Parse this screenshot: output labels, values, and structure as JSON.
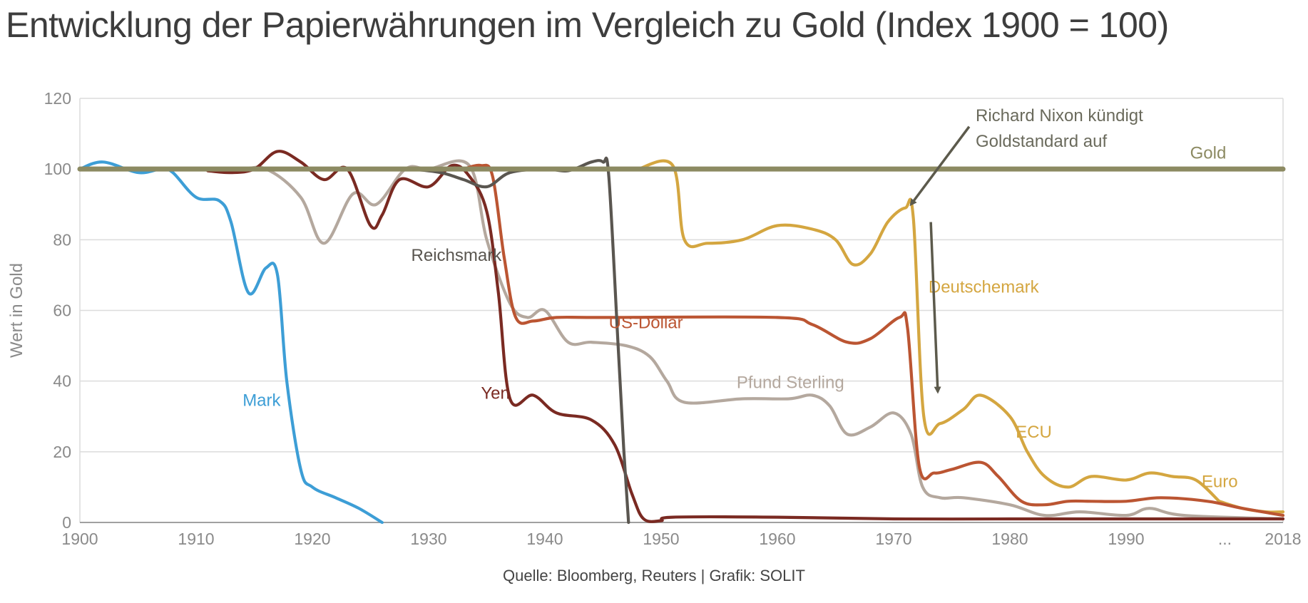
{
  "title": "Entwicklung der Papierwährungen im Vergleich zu Gold (Index 1900 = 100)",
  "source": "Quelle: Bloomberg, Reuters | Grafik: SOLIT",
  "chart_data": {
    "type": "line",
    "title": "Entwicklung der Papierwährungen im Vergleich zu Gold (Index 1900 = 100)",
    "xlabel": "",
    "ylabel": "Wert in Gold",
    "ylim": [
      0,
      120
    ],
    "xlim": [
      1900,
      2003.5
    ],
    "grid": true,
    "x_ticks": [
      {
        "value": 1900,
        "label": "1900"
      },
      {
        "value": 1910,
        "label": "1910"
      },
      {
        "value": 1920,
        "label": "1920"
      },
      {
        "value": 1930,
        "label": "1930"
      },
      {
        "value": 1940,
        "label": "1940"
      },
      {
        "value": 1950,
        "label": "1950"
      },
      {
        "value": 1960,
        "label": "1960"
      },
      {
        "value": 1970,
        "label": "1970"
      },
      {
        "value": 1980,
        "label": "1980"
      },
      {
        "value": 1990,
        "label": "1990"
      },
      {
        "value": 1998.5,
        "label": "..."
      },
      {
        "value": 2003.5,
        "label": "2018"
      }
    ],
    "y_ticks": [
      {
        "value": 0,
        "label": "0"
      },
      {
        "value": 20,
        "label": "20"
      },
      {
        "value": 40,
        "label": "40"
      },
      {
        "value": 60,
        "label": "60"
      },
      {
        "value": 80,
        "label": "80"
      },
      {
        "value": 100,
        "label": "100"
      },
      {
        "value": 120,
        "label": "120"
      }
    ],
    "series": [
      {
        "name": "Gold",
        "label": "Gold",
        "color": "#8c8a62",
        "label_at": [
          1995.5,
          103
        ],
        "points": [
          [
            1900,
            100
          ],
          [
            2003.5,
            100
          ]
        ]
      },
      {
        "name": "Reichsmark",
        "label": "Reichsmark",
        "color": "#5a5650",
        "label_at": [
          1928.5,
          74
        ],
        "points": [
          [
            1924,
            100
          ],
          [
            1928,
            100
          ],
          [
            1931,
            99
          ],
          [
            1933,
            97
          ],
          [
            1935,
            95
          ],
          [
            1937,
            99
          ],
          [
            1940,
            100
          ],
          [
            1942,
            99.5
          ],
          [
            1944,
            102
          ],
          [
            1945,
            102
          ],
          [
            1945.5,
            98
          ],
          [
            1946.3,
            50
          ],
          [
            1946.8,
            20
          ],
          [
            1947.2,
            0
          ]
        ]
      },
      {
        "name": "Yen",
        "label": "Yen",
        "color": "#7a2a22",
        "label_at": [
          1934.5,
          35
        ],
        "points": [
          [
            1911,
            99.5
          ],
          [
            1913,
            99
          ],
          [
            1915,
            100
          ],
          [
            1917,
            105
          ],
          [
            1919,
            102
          ],
          [
            1921,
            97
          ],
          [
            1923,
            100
          ],
          [
            1925,
            84
          ],
          [
            1926,
            87
          ],
          [
            1927.5,
            97
          ],
          [
            1930,
            95
          ],
          [
            1932,
            101
          ],
          [
            1933.5,
            98
          ],
          [
            1935,
            88
          ],
          [
            1936,
            65
          ],
          [
            1937,
            35
          ],
          [
            1939,
            36
          ],
          [
            1941,
            31
          ],
          [
            1944,
            29
          ],
          [
            1946,
            22
          ],
          [
            1947.5,
            8
          ],
          [
            1948.5,
            1
          ],
          [
            1950,
            0.5
          ],
          [
            1951,
            1.5
          ],
          [
            1960,
            1.5
          ],
          [
            1970,
            1
          ],
          [
            1980,
            1
          ],
          [
            1990,
            1
          ],
          [
            2003.5,
            1
          ]
        ]
      },
      {
        "name": "US-Dollar",
        "label": "US-Dollar",
        "color": "#bb5532",
        "label_at": [
          1945.5,
          55
        ],
        "points": [
          [
            1933,
            100
          ],
          [
            1934.5,
            101
          ],
          [
            1935.5,
            98
          ],
          [
            1936.5,
            75
          ],
          [
            1937.5,
            58
          ],
          [
            1939,
            57
          ],
          [
            1941,
            58
          ],
          [
            1945,
            58
          ],
          [
            1960,
            58
          ],
          [
            1963,
            56
          ],
          [
            1966,
            51
          ],
          [
            1968,
            52
          ],
          [
            1970.5,
            58
          ],
          [
            1971.2,
            55
          ],
          [
            1972.2,
            16
          ],
          [
            1973.5,
            14
          ],
          [
            1975,
            15
          ],
          [
            1977.5,
            17
          ],
          [
            1979,
            13
          ],
          [
            1981,
            6
          ],
          [
            1983,
            5
          ],
          [
            1985,
            6
          ],
          [
            1987,
            6
          ],
          [
            1990,
            6
          ],
          [
            1993,
            7
          ],
          [
            1997,
            6
          ],
          [
            2000,
            4
          ],
          [
            2003.5,
            2
          ]
        ]
      },
      {
        "name": "Pfund Sterling",
        "label": "Pfund Sterling",
        "color": "#b4a89e",
        "label_at": [
          1956.5,
          38
        ],
        "points": [
          [
            1900,
            100
          ],
          [
            1913,
            100
          ],
          [
            1916,
            100
          ],
          [
            1919,
            92
          ],
          [
            1921,
            79
          ],
          [
            1923.5,
            93
          ],
          [
            1925.5,
            90
          ],
          [
            1928,
            100
          ],
          [
            1930,
            100
          ],
          [
            1933.5,
            101
          ],
          [
            1935,
            80
          ],
          [
            1937,
            62
          ],
          [
            1938.5,
            58
          ],
          [
            1940,
            60
          ],
          [
            1942,
            51
          ],
          [
            1944,
            51
          ],
          [
            1947,
            50
          ],
          [
            1949,
            47
          ],
          [
            1950.5,
            40
          ],
          [
            1952,
            34
          ],
          [
            1957,
            35
          ],
          [
            1961,
            35
          ],
          [
            1963,
            36
          ],
          [
            1964.5,
            33
          ],
          [
            1966,
            25
          ],
          [
            1968,
            27
          ],
          [
            1970,
            31
          ],
          [
            1971.5,
            25
          ],
          [
            1972.5,
            10
          ],
          [
            1974,
            7
          ],
          [
            1976,
            7
          ],
          [
            1980,
            5
          ],
          [
            1983,
            2
          ],
          [
            1986,
            3
          ],
          [
            1990,
            2
          ],
          [
            1992,
            4
          ],
          [
            1995,
            2
          ],
          [
            2003.5,
            1
          ]
        ]
      },
      {
        "name": "Deutschemark",
        "label": "Deutschemark",
        "color": "#d4a640",
        "label_at": [
          1973,
          65
        ],
        "points": [
          [
            1948,
            100
          ],
          [
            1951,
            101
          ],
          [
            1952,
            80
          ],
          [
            1954,
            79
          ],
          [
            1957,
            80
          ],
          [
            1960,
            84
          ],
          [
            1963,
            83
          ],
          [
            1965,
            80
          ],
          [
            1966.5,
            73
          ],
          [
            1968,
            76
          ],
          [
            1969.5,
            85
          ],
          [
            1971,
            89
          ],
          [
            1971.7,
            86
          ],
          [
            1972.6,
            30
          ],
          [
            1974,
            28
          ],
          [
            1976,
            32
          ],
          [
            1977.5,
            36
          ],
          [
            1980,
            30
          ],
          [
            1981.5,
            20
          ],
          [
            1983,
            13
          ],
          [
            1985,
            10
          ],
          [
            1987,
            13
          ],
          [
            1990,
            12
          ],
          [
            1992,
            14
          ],
          [
            1994,
            13
          ],
          [
            1996,
            12
          ],
          [
            1998,
            6
          ]
        ]
      },
      {
        "name": "ECU",
        "label": "ECU",
        "color": "#d4a640",
        "label_at": [
          1980.5,
          24
        ],
        "points": []
      },
      {
        "name": "Euro",
        "label": "Euro",
        "color": "#d4a640",
        "label_at": [
          1996.5,
          10
        ],
        "points": [
          [
            1998,
            6
          ],
          [
            2000,
            4
          ],
          [
            2002,
            3
          ],
          [
            2003.5,
            3
          ]
        ]
      },
      {
        "name": "Mark",
        "label": "Mark",
        "color": "#3d9ed6",
        "label_at": [
          1914,
          33
        ],
        "points": [
          [
            1900,
            100
          ],
          [
            1902,
            102
          ],
          [
            1905,
            99
          ],
          [
            1907,
            100
          ],
          [
            1908,
            99
          ],
          [
            1910,
            92
          ],
          [
            1912,
            91
          ],
          [
            1913,
            85
          ],
          [
            1914.5,
            65
          ],
          [
            1916,
            72
          ],
          [
            1917,
            70
          ],
          [
            1917.8,
            40
          ],
          [
            1919,
            15
          ],
          [
            1920,
            10
          ],
          [
            1922,
            7
          ],
          [
            1924,
            4
          ],
          [
            1926,
            0
          ]
        ]
      }
    ],
    "annotations": [
      {
        "text": [
          "Richard Nixon kündigt",
          "Goldstandard auf"
        ],
        "anchor": [
          1971.5,
          90
        ],
        "from": [
          1976.5,
          112
        ]
      },
      {
        "text": [],
        "anchor": [
          1973.8,
          37
        ],
        "from": [
          1973.2,
          85
        ]
      }
    ]
  }
}
